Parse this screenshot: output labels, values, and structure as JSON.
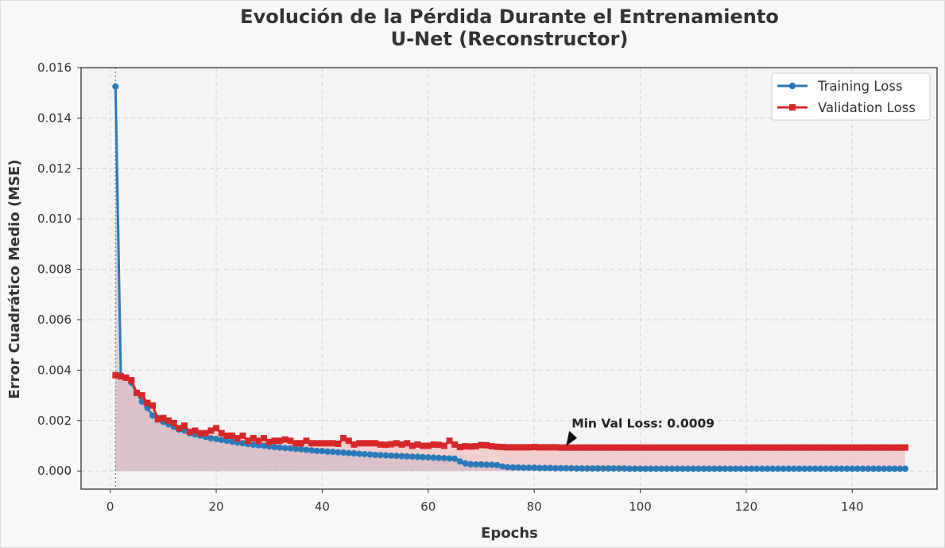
{
  "colors": {
    "training": "#2a7ab9",
    "validation": "#d62728",
    "plot_bg": "#f4f4f4",
    "page_bg": "#f8f8f8",
    "grid": "#d3d3d3",
    "train_fill": "#c9b7c6",
    "val_fill": "#f1c6c6"
  },
  "chart_data": {
    "type": "line",
    "title": "Evolución de la Pérdida Durante el Entrenamiento",
    "subtitle": "U-Net (Reconstructor)",
    "xlabel": "Epochs",
    "ylabel": "Error Cuadrático Medio (MSE)",
    "xlim": [
      -5.5,
      156
    ],
    "ylim": [
      -0.00072,
      0.016
    ],
    "xticks": [
      "0",
      "20",
      "40",
      "60",
      "80",
      "100",
      "120",
      "140"
    ],
    "yticks": [
      "0.000",
      "0.002",
      "0.004",
      "0.006",
      "0.008",
      "0.010",
      "0.012",
      "0.014",
      "0.016"
    ],
    "grid": true,
    "legend_position": "top-right",
    "reference_line_x": 1,
    "annotation": {
      "text": "Min Val Loss: 0.0009",
      "x": 86,
      "y": 0.00093
    },
    "series": [
      {
        "name": "Training Loss",
        "marker": "circle",
        "x": [
          1,
          2,
          3,
          4,
          5,
          6,
          7,
          8,
          9,
          10,
          11,
          12,
          13,
          14,
          15,
          16,
          17,
          18,
          19,
          20,
          21,
          22,
          23,
          24,
          25,
          26,
          27,
          28,
          29,
          30,
          31,
          32,
          33,
          34,
          35,
          36,
          37,
          38,
          39,
          40,
          41,
          42,
          43,
          44,
          45,
          46,
          47,
          48,
          49,
          50,
          51,
          52,
          53,
          54,
          55,
          56,
          57,
          58,
          59,
          60,
          61,
          62,
          63,
          64,
          65,
          66,
          67,
          68,
          69,
          70,
          71,
          72,
          73,
          74,
          75,
          76,
          77,
          78,
          79,
          80,
          81,
          82,
          83,
          84,
          85,
          86,
          87,
          88,
          89,
          90,
          91,
          92,
          93,
          94,
          95,
          96,
          97,
          98,
          99,
          100,
          101,
          102,
          103,
          104,
          105,
          106,
          107,
          108,
          109,
          110,
          111,
          112,
          113,
          114,
          115,
          116,
          117,
          118,
          119,
          120,
          121,
          122,
          123,
          124,
          125,
          126,
          127,
          128,
          129,
          130,
          131,
          132,
          133,
          134,
          135,
          136,
          137,
          138,
          139,
          140,
          141,
          142,
          143,
          144,
          145,
          146,
          147,
          148,
          149,
          150
        ],
        "values": [
          0.01525,
          0.0038,
          0.0037,
          0.0035,
          0.0031,
          0.00275,
          0.0025,
          0.0022,
          0.0021,
          0.00195,
          0.00185,
          0.00175,
          0.00165,
          0.0016,
          0.0015,
          0.00145,
          0.0014,
          0.00135,
          0.0013,
          0.00127,
          0.00123,
          0.0012,
          0.00116,
          0.00113,
          0.0011,
          0.00107,
          0.00104,
          0.00102,
          0.001,
          0.00097,
          0.00095,
          0.00093,
          0.00091,
          0.0009,
          0.00088,
          0.00086,
          0.00084,
          0.00082,
          0.0008,
          0.00079,
          0.00077,
          0.00076,
          0.00074,
          0.00073,
          0.00071,
          0.0007,
          0.00068,
          0.00067,
          0.00066,
          0.00064,
          0.00063,
          0.00062,
          0.00061,
          0.0006,
          0.00059,
          0.00058,
          0.00057,
          0.00056,
          0.00055,
          0.00054,
          0.00053,
          0.00052,
          0.00051,
          0.0005,
          0.00049,
          0.00038,
          0.0003,
          0.00027,
          0.00026,
          0.00026,
          0.00025,
          0.00025,
          0.00023,
          0.00018,
          0.00015,
          0.00014,
          0.00014,
          0.00013,
          0.00013,
          0.00013,
          0.00012,
          0.00012,
          0.00012,
          0.00011,
          0.00011,
          0.00011,
          0.00011,
          0.0001,
          0.0001,
          0.0001,
          0.0001,
          0.0001,
          0.0001,
          0.0001,
          0.0001,
          0.0001,
          0.0001,
          9e-05,
          9e-05,
          9e-05,
          9e-05,
          9e-05,
          9e-05,
          9e-05,
          9e-05,
          9e-05,
          9e-05,
          9e-05,
          9e-05,
          9e-05,
          9e-05,
          9e-05,
          9e-05,
          9e-05,
          9e-05,
          9e-05,
          9e-05,
          9e-05,
          9e-05,
          9e-05,
          9e-05,
          9e-05,
          9e-05,
          9e-05,
          9e-05,
          9e-05,
          9e-05,
          9e-05,
          9e-05,
          9e-05,
          9e-05,
          9e-05,
          9e-05,
          9e-05,
          9e-05,
          9e-05,
          9e-05,
          9e-05,
          9e-05,
          9e-05,
          9e-05,
          9e-05,
          9e-05,
          9e-05,
          9e-05,
          9e-05,
          9e-05,
          9e-05,
          9e-05,
          9e-05
        ]
      },
      {
        "name": "Validation Loss",
        "marker": "square",
        "x": [
          1,
          2,
          3,
          4,
          5,
          6,
          7,
          8,
          9,
          10,
          11,
          12,
          13,
          14,
          15,
          16,
          17,
          18,
          19,
          20,
          21,
          22,
          23,
          24,
          25,
          26,
          27,
          28,
          29,
          30,
          31,
          32,
          33,
          34,
          35,
          36,
          37,
          38,
          39,
          40,
          41,
          42,
          43,
          44,
          45,
          46,
          47,
          48,
          49,
          50,
          51,
          52,
          53,
          54,
          55,
          56,
          57,
          58,
          59,
          60,
          61,
          62,
          63,
          64,
          65,
          66,
          67,
          68,
          69,
          70,
          71,
          72,
          73,
          74,
          75,
          76,
          77,
          78,
          79,
          80,
          81,
          82,
          83,
          84,
          85,
          86,
          87,
          88,
          89,
          90,
          91,
          92,
          93,
          94,
          95,
          96,
          97,
          98,
          99,
          100,
          101,
          102,
          103,
          104,
          105,
          106,
          107,
          108,
          109,
          110,
          111,
          112,
          113,
          114,
          115,
          116,
          117,
          118,
          119,
          120,
          121,
          122,
          123,
          124,
          125,
          126,
          127,
          128,
          129,
          130,
          131,
          132,
          133,
          134,
          135,
          136,
          137,
          138,
          139,
          140,
          141,
          142,
          143,
          144,
          145,
          146,
          147,
          148,
          149,
          150
        ],
        "values": [
          0.0038,
          0.00375,
          0.0037,
          0.0036,
          0.0031,
          0.003,
          0.0027,
          0.0026,
          0.00205,
          0.0021,
          0.002,
          0.0019,
          0.0017,
          0.0018,
          0.00155,
          0.0016,
          0.0015,
          0.0015,
          0.0016,
          0.0017,
          0.0015,
          0.0014,
          0.0014,
          0.0013,
          0.0014,
          0.0012,
          0.0013,
          0.0012,
          0.0013,
          0.00115,
          0.0012,
          0.0012,
          0.00125,
          0.0012,
          0.0011,
          0.0011,
          0.0012,
          0.0011,
          0.0011,
          0.0011,
          0.0011,
          0.0011,
          0.00108,
          0.0013,
          0.0012,
          0.00105,
          0.0011,
          0.0011,
          0.0011,
          0.0011,
          0.00105,
          0.00104,
          0.00106,
          0.0011,
          0.00105,
          0.0011,
          0.001,
          0.00105,
          0.001,
          0.001,
          0.00105,
          0.00104,
          0.001,
          0.0012,
          0.00105,
          0.00095,
          0.00098,
          0.00097,
          0.00098,
          0.00103,
          0.00102,
          0.00098,
          0.00096,
          0.00095,
          0.00094,
          0.00094,
          0.00094,
          0.00094,
          0.00094,
          0.00095,
          0.00094,
          0.00094,
          0.00094,
          0.00094,
          0.00093,
          0.00093,
          0.00093,
          0.00093,
          0.00093,
          0.00093,
          0.00093,
          0.00093,
          0.00093,
          0.00093,
          0.00093,
          0.00093,
          0.00093,
          0.00093,
          0.00093,
          0.00093,
          0.00093,
          0.00093,
          0.00093,
          0.00093,
          0.00093,
          0.00093,
          0.00093,
          0.00093,
          0.00093,
          0.00093,
          0.00093,
          0.00093,
          0.00093,
          0.00093,
          0.00093,
          0.00093,
          0.00093,
          0.00093,
          0.00093,
          0.00093,
          0.00093,
          0.00093,
          0.00093,
          0.00093,
          0.00093,
          0.00093,
          0.00093,
          0.00093,
          0.00093,
          0.00093,
          0.00093,
          0.00093,
          0.00093,
          0.00093,
          0.00093,
          0.00093,
          0.00093,
          0.00093,
          0.00093,
          0.00093,
          0.00093,
          0.00093,
          0.00093,
          0.00093,
          0.00093,
          0.00093,
          0.00093,
          0.00093,
          0.00093,
          0.00093
        ]
      }
    ]
  }
}
